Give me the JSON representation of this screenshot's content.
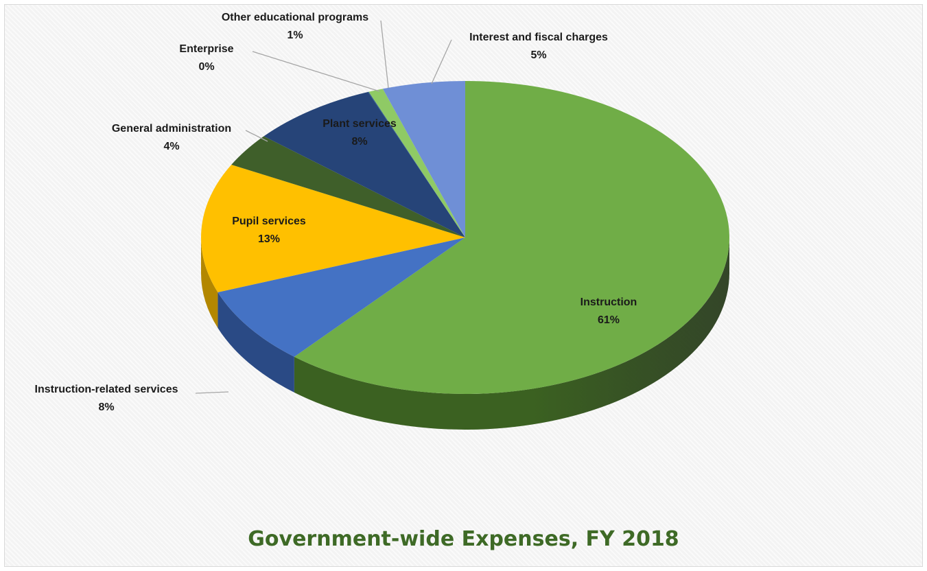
{
  "chart_data": {
    "type": "pie",
    "title": "Government-wide Expenses, FY 2018",
    "slices": [
      {
        "label": "Instruction",
        "value_label": "61%",
        "value": 61.2,
        "color": "#70ad47",
        "side": "#3b6121"
      },
      {
        "label": "Instruction-related services",
        "value_label": "8%",
        "value": 8.1,
        "color": "#4472c4",
        "side": "#2a4a85"
      },
      {
        "label": "Pupil services",
        "value_label": "13%",
        "value": 13.4,
        "color": "#ffc000",
        "side": "#b38700"
      },
      {
        "label": "General administration",
        "value_label": "4%",
        "value": 3.5,
        "color": "#3f5f2a",
        "side": "#2a4019"
      },
      {
        "label": "Plant services",
        "value_label": "8%",
        "value": 7.8,
        "color": "#264478",
        "side": "#18305a"
      },
      {
        "label": "Enterprise",
        "value_label": "0%",
        "value": 0.05,
        "color": "#2d5a8e",
        "side": "#1e3f66"
      },
      {
        "label": "Other educational programs",
        "value_label": "1%",
        "value": 0.9,
        "color": "#8fca65",
        "side": "#5e8f3e"
      },
      {
        "label": "Interest and fiscal charges",
        "value_label": "5%",
        "value": 5.05,
        "color": "#6f8fd6",
        "side": "#4a68a8"
      }
    ]
  }
}
